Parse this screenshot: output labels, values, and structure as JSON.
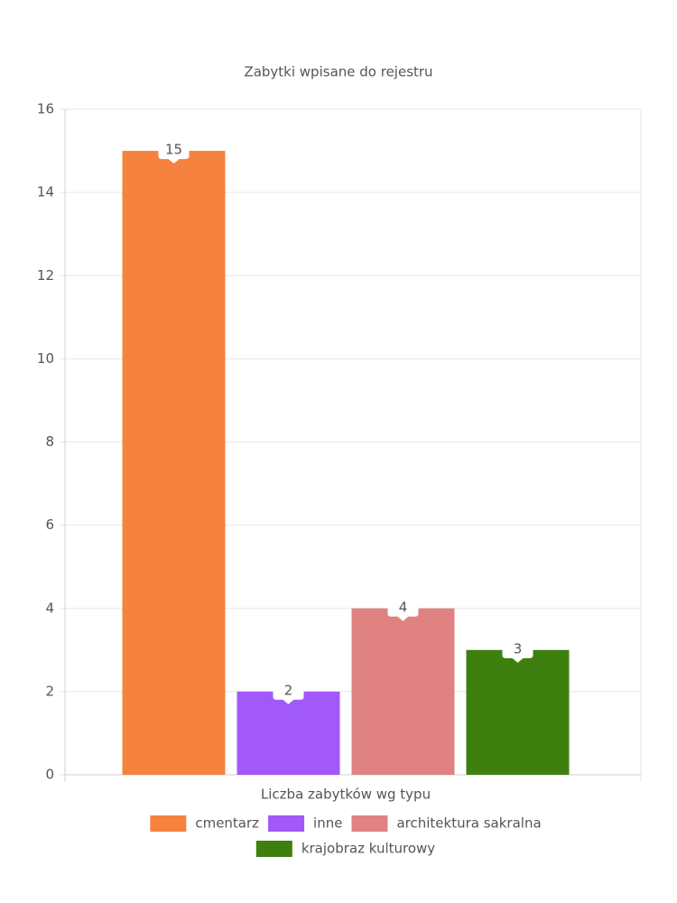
{
  "chart_data": {
    "type": "bar",
    "title": "Zabytki wpisane do rejestru",
    "categories": [
      "Liczba zabytków wg typu"
    ],
    "series": [
      {
        "name": "cmentarz",
        "color": "#f5833f",
        "values": [
          15
        ]
      },
      {
        "name": "inne",
        "color": "#a259fa",
        "values": [
          2
        ]
      },
      {
        "name": "architektura sakralna",
        "color": "#e08282",
        "values": [
          4
        ]
      },
      {
        "name": "krajobraz kulturowy",
        "color": "#3f7f10",
        "values": [
          3
        ]
      }
    ],
    "ylim": [
      0,
      16
    ],
    "yticks": [
      0,
      2,
      4,
      6,
      8,
      10,
      12,
      14,
      16
    ],
    "grid": true,
    "legend": "bottom"
  }
}
